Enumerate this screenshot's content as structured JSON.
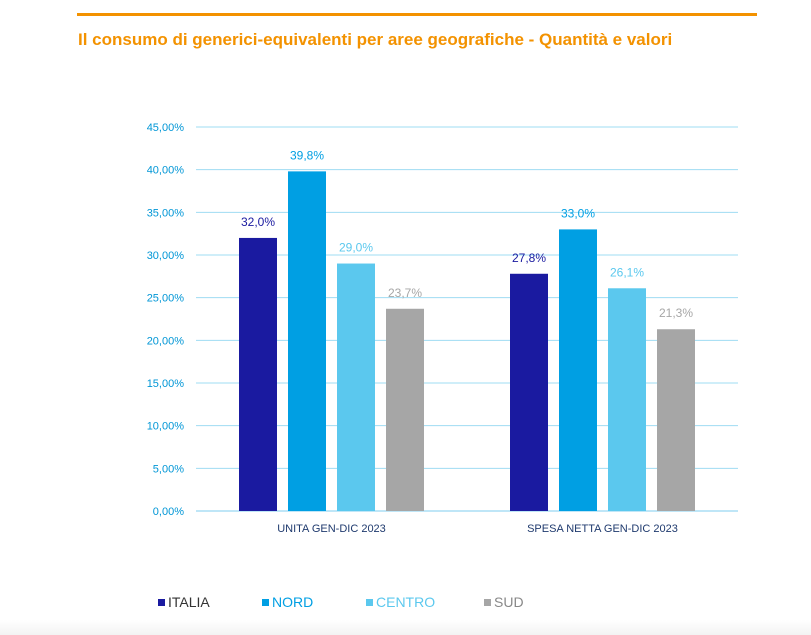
{
  "header": {
    "title": "Il consumo di generici-equivalenti per aree geografiche - Quantità e valori",
    "accent_color": "#f39200"
  },
  "chart_data": {
    "type": "bar",
    "title": "Il consumo di generici-equivalenti per aree geografiche - Quantità e valori",
    "categories": [
      "UNITA GEN-DIC 2023",
      "SPESA NETTA GEN-DIC 2023"
    ],
    "series": [
      {
        "name": "ITALIA",
        "color": "#1a1aa0",
        "values": [
          32.0,
          27.8
        ],
        "labels": [
          "32,0%",
          "27,8%"
        ]
      },
      {
        "name": "NORD",
        "color": "#009fe3",
        "values": [
          39.8,
          33.0
        ],
        "labels": [
          "39,8%",
          "33,0%"
        ]
      },
      {
        "name": "CENTRO",
        "color": "#5bc8ee",
        "values": [
          29.0,
          26.1
        ],
        "labels": [
          "29,0%",
          "26,1%"
        ]
      },
      {
        "name": "SUD",
        "color": "#a6a6a6",
        "values": [
          23.7,
          21.3
        ],
        "labels": [
          "23,7%",
          "21,3%"
        ]
      }
    ],
    "ylim": [
      0,
      45
    ],
    "y_ticks": [
      "0,00%",
      "5,00%",
      "10,00%",
      "15,00%",
      "20,00%",
      "25,00%",
      "30,00%",
      "35,00%",
      "40,00%",
      "45,00%"
    ],
    "grid": true,
    "legend_position": "bottom",
    "tick_label_color": "#0096d6",
    "grid_color": "#9fdcf3"
  }
}
